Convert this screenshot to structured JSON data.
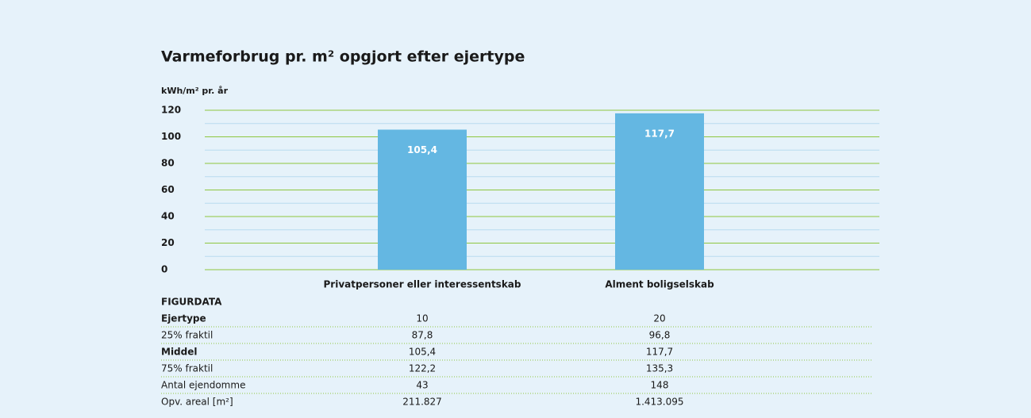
{
  "chart_data": {
    "type": "bar",
    "title": "Varmeforbrug pr. m² opgjort efter ejertype",
    "ylabel": "kWh/m² pr. år",
    "categories": [
      "Privatpersoner eller interessentskab",
      "Alment boligselskab"
    ],
    "values": [
      105.4,
      117.7
    ],
    "value_labels": [
      "105,4",
      "117,7"
    ],
    "color": "#64b7e2",
    "ylim": [
      0,
      120
    ],
    "yticks": [
      0,
      20,
      40,
      60,
      80,
      100,
      120
    ],
    "minor_yticks": [
      10,
      30,
      50,
      70,
      90,
      110
    ],
    "grid": true,
    "grid_color": "#8dc63f",
    "minor_grid_color": "#b8dbef"
  },
  "table": {
    "title": "FIGURDATA",
    "rows": [
      [
        "Ejertype",
        "10",
        "20"
      ],
      [
        "25% fraktil",
        "87,8",
        "96,8"
      ],
      [
        "Middel",
        "105,4",
        "117,7"
      ],
      [
        "75% fraktil",
        "122,2",
        "135,3"
      ],
      [
        "Antal ejendomme",
        "43",
        "148"
      ],
      [
        "Opv. areal [m²]",
        "211.827",
        "1.413.095"
      ]
    ]
  }
}
